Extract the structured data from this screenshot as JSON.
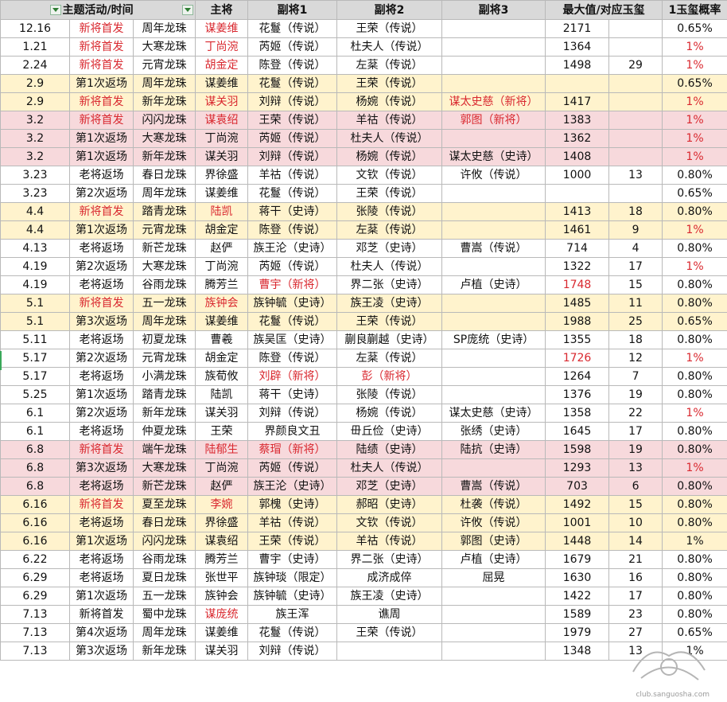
{
  "headers": [
    "主题活动/时间",
    "主将",
    "副将1",
    "副将2",
    "副将3",
    "最大值/对应玉玺",
    "1玉玺概率"
  ],
  "rows": [
    {
      "date": "12.16",
      "event": "新将首发",
      "pearl": "周年龙珠",
      "main": "谋姜维",
      "v1": "花鬘（传说）",
      "v2": "王荣（传说）",
      "v3": "",
      "max": "2171",
      "cnt": "",
      "pct": "0.65%",
      "style": "",
      "red": [
        "event",
        "main"
      ]
    },
    {
      "date": "1.21",
      "event": "新将首发",
      "pearl": "大寒龙珠",
      "main": "丁尚涴",
      "v1": "芮姬（传说）",
      "v2": "杜夫人（传说）",
      "v3": "",
      "max": "1364",
      "cnt": "",
      "pct": "1%",
      "style": "",
      "red": [
        "event",
        "main",
        "pct"
      ]
    },
    {
      "date": "2.24",
      "event": "新将首发",
      "pearl": "元宵龙珠",
      "main": "胡金定",
      "v1": "陈登（传说）",
      "v2": "左棻（传说）",
      "v3": "",
      "max": "1498",
      "cnt": "29",
      "pct": "1%",
      "style": "",
      "red": [
        "event",
        "main",
        "pct"
      ]
    },
    {
      "date": "2.9",
      "event": "第1次返场",
      "pearl": "周年龙珠",
      "main": "谋姜维",
      "v1": "花鬘（传说）",
      "v2": "王荣（传说）",
      "v3": "",
      "max": "",
      "cnt": "",
      "pct": "0.65%",
      "style": "y",
      "red": []
    },
    {
      "date": "2.9",
      "event": "新将首发",
      "pearl": "新年龙珠",
      "main": "谋关羽",
      "v1": "刘辩（传说）",
      "v2": "杨婉（传说）",
      "v3": "谋太史慈（新将）",
      "max": "1417",
      "cnt": "",
      "pct": "1%",
      "style": "y",
      "red": [
        "event",
        "main",
        "v3",
        "pct"
      ]
    },
    {
      "date": "3.2",
      "event": "新将首发",
      "pearl": "闪闪龙珠",
      "main": "谋袁绍",
      "v1": "王荣（传说）",
      "v2": "羊祜（传说）",
      "v3": "郭图（新将）",
      "max": "1383",
      "cnt": "",
      "pct": "1%",
      "style": "p",
      "red": [
        "event",
        "main",
        "v3",
        "pct"
      ]
    },
    {
      "date": "3.2",
      "event": "第1次返场",
      "pearl": "大寒龙珠",
      "main": "丁尚涴",
      "v1": "芮姬（传说）",
      "v2": "杜夫人（传说）",
      "v3": "",
      "max": "1362",
      "cnt": "",
      "pct": "1%",
      "style": "p",
      "red": [
        "pct"
      ]
    },
    {
      "date": "3.2",
      "event": "第1次返场",
      "pearl": "新年龙珠",
      "main": "谋关羽",
      "v1": "刘辩（传说）",
      "v2": "杨婉（传说）",
      "v3": "谋太史慈（史诗）",
      "max": "1408",
      "cnt": "",
      "pct": "1%",
      "style": "p",
      "red": [
        "pct"
      ]
    },
    {
      "date": "3.23",
      "event": "老将返场",
      "pearl": "春日龙珠",
      "main": "界徐盛",
      "v1": "羊祜（传说）",
      "v2": "文钦（传说）",
      "v3": "许攸（传说）",
      "max": "1000",
      "cnt": "13",
      "pct": "0.80%",
      "style": "",
      "red": []
    },
    {
      "date": "3.23",
      "event": "第2次返场",
      "pearl": "周年龙珠",
      "main": "谋姜维",
      "v1": "花鬘（传说）",
      "v2": "王荣（传说）",
      "v3": "",
      "max": "",
      "cnt": "",
      "pct": "0.65%",
      "style": "",
      "red": []
    },
    {
      "date": "4.4",
      "event": "新将首发",
      "pearl": "踏青龙珠",
      "main": "陆凯",
      "v1": "蒋干（史诗）",
      "v2": "张陵（传说）",
      "v3": "",
      "max": "1413",
      "cnt": "18",
      "pct": "0.80%",
      "style": "y",
      "red": [
        "event",
        "main"
      ]
    },
    {
      "date": "4.4",
      "event": "第1次返场",
      "pearl": "元宵龙珠",
      "main": "胡金定",
      "v1": "陈登（传说）",
      "v2": "左棻（传说）",
      "v3": "",
      "max": "1461",
      "cnt": "9",
      "pct": "1%",
      "style": "y",
      "red": [
        "pct"
      ]
    },
    {
      "date": "4.13",
      "event": "老将返场",
      "pearl": "新芒龙珠",
      "main": "赵俨",
      "v1": "族王沦（史诗）",
      "v2": "邓芝（史诗）",
      "v3": "曹嵩（传说）",
      "max": "714",
      "cnt": "4",
      "pct": "0.80%",
      "style": "",
      "red": []
    },
    {
      "date": "4.19",
      "event": "第2次返场",
      "pearl": "大寒龙珠",
      "main": "丁尚涴",
      "v1": "芮姬（传说）",
      "v2": "杜夫人（传说）",
      "v3": "",
      "max": "1322",
      "cnt": "17",
      "pct": "1%",
      "style": "",
      "red": [
        "pct"
      ]
    },
    {
      "date": "4.19",
      "event": "老将返场",
      "pearl": "谷雨龙珠",
      "main": "腾芳兰",
      "v1": "曹宇（新将）",
      "v2": "界二张（史诗）",
      "v3": "卢植（史诗）",
      "max": "1748",
      "cnt": "15",
      "pct": "0.80%",
      "style": "",
      "red": [
        "v1",
        "max"
      ]
    },
    {
      "date": "5.1",
      "event": "新将首发",
      "pearl": "五一龙珠",
      "main": "族钟会",
      "v1": "族钟毓（史诗）",
      "v2": "族王凌（史诗）",
      "v3": "",
      "max": "1485",
      "cnt": "11",
      "pct": "0.80%",
      "style": "y",
      "red": [
        "event",
        "main"
      ]
    },
    {
      "date": "5.1",
      "event": "第3次返场",
      "pearl": "周年龙珠",
      "main": "谋姜维",
      "v1": "花鬘（传说）",
      "v2": "王荣（传说）",
      "v3": "",
      "max": "1988",
      "cnt": "25",
      "pct": "0.65%",
      "style": "y",
      "red": []
    },
    {
      "date": "5.11",
      "event": "老将返场",
      "pearl": "初夏龙珠",
      "main": "曹羲",
      "v1": "族吴匡（史诗）",
      "v2": "蒯良蒯越（史诗）",
      "v3": "SP庞统（史诗）",
      "max": "1355",
      "cnt": "18",
      "pct": "0.80%",
      "style": "",
      "red": []
    },
    {
      "date": "5.17",
      "event": "第2次返场",
      "pearl": "元宵龙珠",
      "main": "胡金定",
      "v1": "陈登（传说）",
      "v2": "左棻（传说）",
      "v3": "",
      "max": "1726",
      "cnt": "12",
      "pct": "1%",
      "style": "",
      "red": [
        "max",
        "pct"
      ]
    },
    {
      "date": "5.17",
      "event": "老将返场",
      "pearl": "小满龙珠",
      "main": "族荀攸",
      "v1": "刘辟（新将）",
      "v2": "彭（新将）",
      "v3": "",
      "max": "1264",
      "cnt": "7",
      "pct": "0.80%",
      "style": "",
      "red": [
        "v1",
        "v2"
      ]
    },
    {
      "date": "5.25",
      "event": "第1次返场",
      "pearl": "踏青龙珠",
      "main": "陆凯",
      "v1": "蒋干（史诗）",
      "v2": "张陵（传说）",
      "v3": "",
      "max": "1376",
      "cnt": "19",
      "pct": "0.80%",
      "style": "",
      "red": []
    },
    {
      "date": "6.1",
      "event": "第2次返场",
      "pearl": "新年龙珠",
      "main": "谋关羽",
      "v1": "刘辩（传说）",
      "v2": "杨婉（传说）",
      "v3": "谋太史慈（史诗）",
      "max": "1358",
      "cnt": "22",
      "pct": "1%",
      "style": "",
      "red": [
        "pct"
      ]
    },
    {
      "date": "6.1",
      "event": "老将返场",
      "pearl": "仲夏龙珠",
      "main": "王荣",
      "v1": "界颜良文丑",
      "v2": "毌丘俭（史诗）",
      "v3": "张绣（史诗）",
      "max": "1645",
      "cnt": "17",
      "pct": "0.80%",
      "style": "",
      "red": []
    },
    {
      "date": "6.8",
      "event": "新将首发",
      "pearl": "端午龙珠",
      "main": "陆郁生",
      "v1": "蔡瑁（新将）",
      "v2": "陆绩（史诗）",
      "v3": "陆抗（史诗）",
      "max": "1598",
      "cnt": "19",
      "pct": "0.80%",
      "style": "p",
      "red": [
        "event",
        "main",
        "v1"
      ]
    },
    {
      "date": "6.8",
      "event": "第3次返场",
      "pearl": "大寒龙珠",
      "main": "丁尚涴",
      "v1": "芮姬（传说）",
      "v2": "杜夫人（传说）",
      "v3": "",
      "max": "1293",
      "cnt": "13",
      "pct": "1%",
      "style": "p",
      "red": [
        "pct"
      ]
    },
    {
      "date": "6.8",
      "event": "老将返场",
      "pearl": "新芒龙珠",
      "main": "赵俨",
      "v1": "族王沦（史诗）",
      "v2": "邓芝（史诗）",
      "v3": "曹嵩（传说）",
      "max": "703",
      "cnt": "6",
      "pct": "0.80%",
      "style": "p",
      "red": []
    },
    {
      "date": "6.16",
      "event": "新将首发",
      "pearl": "夏至龙珠",
      "main": "李婉",
      "v1": "郭槐（史诗）",
      "v2": "郝昭（史诗）",
      "v3": "杜袭（传说）",
      "max": "1492",
      "cnt": "15",
      "pct": "0.80%",
      "style": "y",
      "red": [
        "event",
        "main"
      ]
    },
    {
      "date": "6.16",
      "event": "老将返场",
      "pearl": "春日龙珠",
      "main": "界徐盛",
      "v1": "羊祜（传说）",
      "v2": "文钦（传说）",
      "v3": "许攸（传说）",
      "max": "1001",
      "cnt": "10",
      "pct": "0.80%",
      "style": "y",
      "red": []
    },
    {
      "date": "6.16",
      "event": "第1次返场",
      "pearl": "闪闪龙珠",
      "main": "谋袁绍",
      "v1": "王荣（传说）",
      "v2": "羊祜（传说）",
      "v3": "郭图（史诗）",
      "max": "1448",
      "cnt": "14",
      "pct": "1%",
      "style": "y",
      "red": []
    },
    {
      "date": "6.22",
      "event": "老将返场",
      "pearl": "谷雨龙珠",
      "main": "腾芳兰",
      "v1": "曹宇（史诗）",
      "v2": "界二张（史诗）",
      "v3": "卢植（史诗）",
      "max": "1679",
      "cnt": "21",
      "pct": "0.80%",
      "style": "",
      "red": []
    },
    {
      "date": "6.29",
      "event": "老将返场",
      "pearl": "夏日龙珠",
      "main": "张世平",
      "v1": "族钟琰（限定）",
      "v2": "成济成倅",
      "v3": "屈晃",
      "max": "1630",
      "cnt": "16",
      "pct": "0.80%",
      "style": "",
      "red": []
    },
    {
      "date": "6.29",
      "event": "第1次返场",
      "pearl": "五一龙珠",
      "main": "族钟会",
      "v1": "族钟毓（史诗）",
      "v2": "族王凌（史诗）",
      "v3": "",
      "max": "1422",
      "cnt": "17",
      "pct": "0.80%",
      "style": "",
      "red": []
    },
    {
      "date": "7.13",
      "event": "新将首发",
      "pearl": "蜀中龙珠",
      "main": "谋庞统",
      "v1": "族王浑",
      "v2": "谯周",
      "v3": "",
      "max": "1589",
      "cnt": "23",
      "pct": "0.80%",
      "style": "",
      "red": [
        "main"
      ]
    },
    {
      "date": "7.13",
      "event": "第4次返场",
      "pearl": "周年龙珠",
      "main": "谋姜维",
      "v1": "花鬘（传说）",
      "v2": "王荣（传说）",
      "v3": "",
      "max": "1979",
      "cnt": "27",
      "pct": "0.65%",
      "style": "",
      "red": []
    },
    {
      "date": "7.13",
      "event": "第3次返场",
      "pearl": "新年龙珠",
      "main": "谋关羽",
      "v1": "刘辩（传说）",
      "v2": "",
      "v3": "",
      "max": "1348",
      "cnt": "13",
      "pct": "1%",
      "style": "",
      "red": []
    }
  ],
  "watermark_text": "club.sanguosha.com"
}
